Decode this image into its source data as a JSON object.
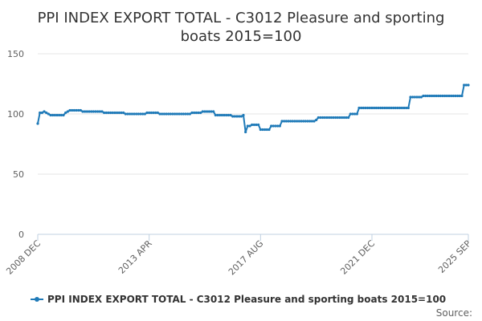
{
  "chart_data": {
    "type": "line",
    "title_line1": "PPI INDEX EXPORT TOTAL - C3012 Pleasure and sporting",
    "title_line2": "boats 2015=100",
    "ylim": [
      0,
      150
    ],
    "y_ticks": [
      "0",
      "50",
      "100",
      "150"
    ],
    "y_tick_values": [
      0,
      50,
      100,
      150
    ],
    "x_tick_labels": [
      "2008 DEC",
      "2013 APR",
      "2017 AUG",
      "2021 DEC",
      "2025 SEP"
    ],
    "x_tick_index": [
      0,
      52,
      104,
      156,
      201
    ],
    "grid": true,
    "legend_position": "bottom",
    "source_label": "Source:",
    "color": "#1f7ab8",
    "series": [
      {
        "name": "PPI INDEX EXPORT TOTAL - C3012 Pleasure and sporting boats 2015=100",
        "segments": [
          {
            "from": 0,
            "to": 0,
            "start": 92,
            "end": 92
          },
          {
            "from": 1,
            "to": 2,
            "start": 101,
            "end": 101
          },
          {
            "from": 3,
            "to": 4,
            "start": 102,
            "end": 101
          },
          {
            "from": 5,
            "to": 5,
            "start": 100,
            "end": 100
          },
          {
            "from": 6,
            "to": 8,
            "start": 99,
            "end": 99
          },
          {
            "from": 9,
            "to": 12,
            "start": 99,
            "end": 99
          },
          {
            "from": 13,
            "to": 14,
            "start": 101,
            "end": 102
          },
          {
            "from": 15,
            "to": 20,
            "start": 103,
            "end": 103
          },
          {
            "from": 21,
            "to": 30,
            "start": 102,
            "end": 102
          },
          {
            "from": 31,
            "to": 40,
            "start": 101,
            "end": 101
          },
          {
            "from": 41,
            "to": 50,
            "start": 100,
            "end": 100
          },
          {
            "from": 51,
            "to": 56,
            "start": 101,
            "end": 101
          },
          {
            "from": 57,
            "to": 71,
            "start": 100,
            "end": 100
          },
          {
            "from": 72,
            "to": 76,
            "start": 101,
            "end": 101
          },
          {
            "from": 77,
            "to": 82,
            "start": 102,
            "end": 102
          },
          {
            "from": 83,
            "to": 90,
            "start": 99,
            "end": 99
          },
          {
            "from": 91,
            "to": 95,
            "start": 98,
            "end": 98
          },
          {
            "from": 96,
            "to": 96,
            "start": 99,
            "end": 99
          },
          {
            "from": 97,
            "to": 97,
            "start": 85,
            "end": 85
          },
          {
            "from": 98,
            "to": 99,
            "start": 90,
            "end": 90
          },
          {
            "from": 100,
            "to": 103,
            "start": 91,
            "end": 91
          },
          {
            "from": 104,
            "to": 108,
            "start": 87,
            "end": 87
          },
          {
            "from": 109,
            "to": 113,
            "start": 90,
            "end": 90
          },
          {
            "from": 114,
            "to": 129,
            "start": 94,
            "end": 94
          },
          {
            "from": 130,
            "to": 130,
            "start": 95,
            "end": 95
          },
          {
            "from": 131,
            "to": 145,
            "start": 97,
            "end": 97
          },
          {
            "from": 146,
            "to": 149,
            "start": 100,
            "end": 100
          },
          {
            "from": 150,
            "to": 173,
            "start": 105,
            "end": 105
          },
          {
            "from": 174,
            "to": 179,
            "start": 114,
            "end": 114
          },
          {
            "from": 180,
            "to": 198,
            "start": 115,
            "end": 115
          },
          {
            "from": 199,
            "to": 201,
            "start": 124,
            "end": 124
          }
        ]
      }
    ]
  }
}
